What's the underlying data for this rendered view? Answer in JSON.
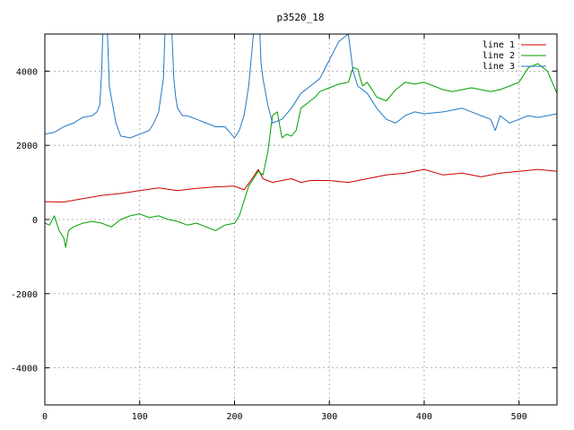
{
  "chart_data": {
    "type": "line",
    "title": "p3520_18",
    "xlabel": "",
    "ylabel": "",
    "xlim": [
      0,
      540
    ],
    "ylim": [
      -5000,
      5000
    ],
    "xticks": [
      0,
      100,
      200,
      300,
      400,
      500
    ],
    "yticks": [
      -4000,
      -2000,
      0,
      2000,
      4000
    ],
    "grid": true,
    "legend_position": "top-right",
    "series": [
      {
        "name": "line 1",
        "color": "#cc0000",
        "x": [
          0,
          20,
          40,
          60,
          80,
          100,
          120,
          140,
          160,
          180,
          200,
          210,
          220,
          225,
          230,
          240,
          250,
          260,
          270,
          280,
          300,
          320,
          340,
          360,
          380,
          400,
          420,
          440,
          460,
          480,
          500,
          520,
          540
        ],
        "y": [
          480,
          470,
          560,
          650,
          700,
          780,
          850,
          780,
          840,
          880,
          900,
          800,
          1150,
          1350,
          1100,
          1000,
          1050,
          1100,
          1000,
          1050,
          1050,
          1000,
          1100,
          1200,
          1250,
          1350,
          1200,
          1250,
          1150,
          1250,
          1300,
          1350,
          1300
        ]
      },
      {
        "name": "line 2",
        "color": "#00a000",
        "x": [
          0,
          5,
          10,
          15,
          20,
          22,
          25,
          30,
          40,
          50,
          60,
          70,
          80,
          90,
          100,
          110,
          120,
          130,
          140,
          150,
          160,
          170,
          180,
          190,
          200,
          205,
          210,
          215,
          220,
          225,
          230,
          235,
          240,
          245,
          250,
          255,
          260,
          265,
          270,
          275,
          280,
          285,
          290,
          295,
          300,
          310,
          320,
          325,
          330,
          335,
          340,
          350,
          360,
          370,
          380,
          390,
          400,
          410,
          420,
          430,
          440,
          450,
          460,
          470,
          480,
          490,
          500,
          510,
          520,
          530,
          540
        ],
        "y": [
          -100,
          -150,
          100,
          -300,
          -500,
          -750,
          -300,
          -200,
          -100,
          -50,
          -100,
          -200,
          0,
          100,
          150,
          50,
          100,
          0,
          -50,
          -150,
          -100,
          -200,
          -300,
          -150,
          -100,
          100,
          500,
          900,
          1100,
          1300,
          1200,
          1800,
          2800,
          2900,
          2200,
          2300,
          2250,
          2400,
          3000,
          3100,
          3200,
          3300,
          3450,
          3500,
          3550,
          3650,
          3700,
          4100,
          4050,
          3600,
          3700,
          3300,
          3200,
          3500,
          3700,
          3650,
          3700,
          3600,
          3500,
          3450,
          3500,
          3550,
          3500,
          3450,
          3500,
          3600,
          3700,
          4100,
          4200,
          4000,
          3400
        ]
      },
      {
        "name": "line 3",
        "color": "#1f78c8",
        "x": [
          0,
          10,
          20,
          30,
          40,
          50,
          55,
          58,
          60,
          62,
          64,
          66,
          68,
          70,
          75,
          80,
          90,
          100,
          110,
          115,
          120,
          125,
          128,
          130,
          132,
          134,
          136,
          138,
          140,
          145,
          150,
          160,
          170,
          180,
          190,
          200,
          205,
          210,
          215,
          220,
          222,
          224,
          226,
          228,
          230,
          235,
          240,
          250,
          260,
          270,
          280,
          290,
          300,
          310,
          320,
          325,
          330,
          340,
          350,
          360,
          370,
          380,
          390,
          400,
          420,
          440,
          460,
          470,
          475,
          480,
          490,
          500,
          510,
          520,
          530,
          540
        ],
        "y": [
          2300,
          2350,
          2500,
          2600,
          2750,
          2800,
          2900,
          3100,
          4000,
          6000,
          6000,
          5000,
          3600,
          3300,
          2600,
          2250,
          2200,
          2300,
          2400,
          2600,
          2900,
          3800,
          6000,
          6000,
          6000,
          5000,
          3800,
          3300,
          3000,
          2800,
          2800,
          2700,
          2600,
          2500,
          2500,
          2200,
          2400,
          2800,
          3600,
          5000,
          6000,
          6000,
          5500,
          4200,
          3800,
          3100,
          2600,
          2700,
          3000,
          3400,
          3600,
          3800,
          4300,
          4800,
          5000,
          4000,
          3600,
          3400,
          3000,
          2700,
          2600,
          2800,
          2900,
          2850,
          2900,
          3000,
          2800,
          2700,
          2400,
          2800,
          2600,
          2700,
          2800,
          2750,
          2800,
          2850
        ]
      }
    ]
  }
}
